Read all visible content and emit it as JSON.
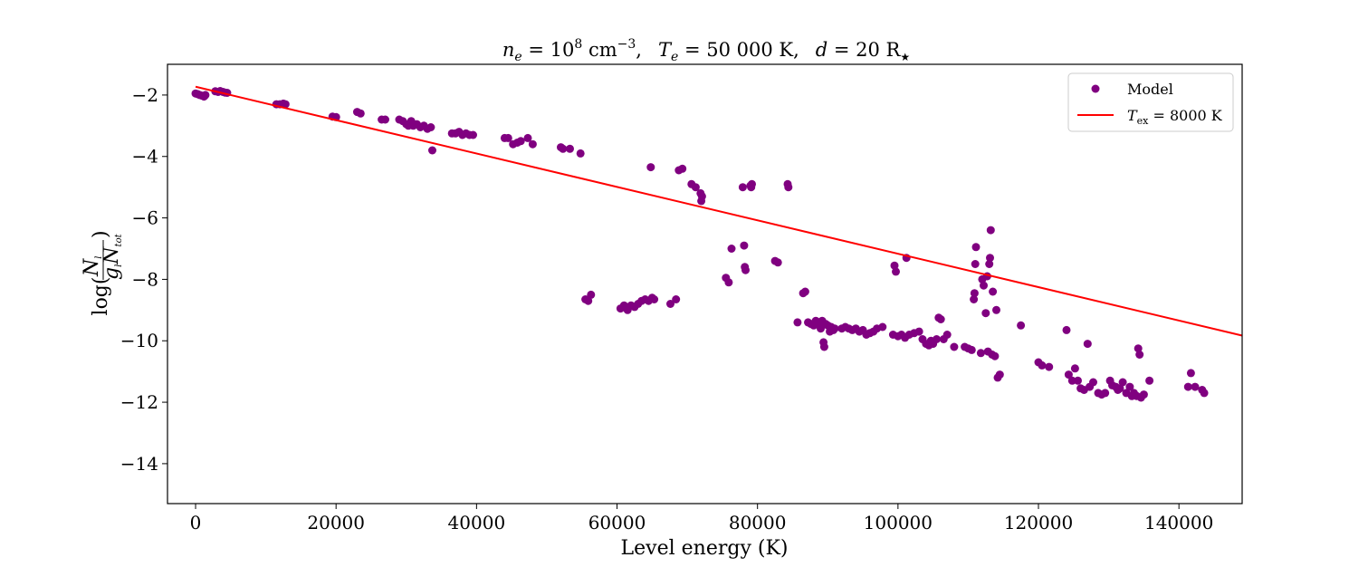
{
  "chart_data": {
    "type": "scatter",
    "title": {
      "ne": "n",
      "ne_sub": "e",
      "ne_eq": " = 10",
      "ne_exp": "8",
      "ne_unit": " cm",
      "ne_unit_exp": "−3",
      "sep1": ",",
      "te": "T",
      "te_sub": "e",
      "te_eq": " = 50 000 K",
      "sep2": ",",
      "d": "d",
      "d_eq": " = 20 R",
      "d_star": "★"
    },
    "xlabel": "Level energy (K)",
    "ylabel": {
      "log": "log(",
      "num": "N",
      "num_sub": "l",
      "den": "g",
      "den_sub1": "l",
      "den_n": "N",
      "den_sub2": "tot",
      "close": ")"
    },
    "xlim": [
      -4000,
      149000
    ],
    "ylim": [
      -15.3,
      -1.0
    ],
    "xticks": [
      0,
      20000,
      40000,
      60000,
      80000,
      100000,
      120000,
      140000
    ],
    "xtick_labels": [
      "0",
      "20000",
      "40000",
      "60000",
      "80000",
      "100000",
      "120000",
      "140000"
    ],
    "yticks": [
      -2,
      -4,
      -6,
      -8,
      -10,
      -12,
      -14
    ],
    "ytick_labels": [
      "−2",
      "−4",
      "−6",
      "−8",
      "−10",
      "−12",
      "−14"
    ],
    "legend": {
      "position": "top-right",
      "model_label": "Model",
      "fit_label_T": "T",
      "fit_label_sub": "ex",
      "fit_label_rest": " = 8000 K"
    },
    "colors": {
      "model": "#800080",
      "fit": "#ff0000"
    },
    "fit_line": {
      "x": [
        0,
        149000
      ],
      "y": [
        -1.73,
        -9.83
      ]
    },
    "series": [
      {
        "name": "Model",
        "points": [
          [
            0,
            -1.95
          ],
          [
            300,
            -1.97
          ],
          [
            600,
            -2.0
          ],
          [
            900,
            -2.02
          ],
          [
            1200,
            -2.05
          ],
          [
            1400,
            -2.0
          ],
          [
            2800,
            -1.88
          ],
          [
            3200,
            -1.9
          ],
          [
            3500,
            -1.87
          ],
          [
            3900,
            -1.9
          ],
          [
            4200,
            -1.92
          ],
          [
            4500,
            -1.93
          ],
          [
            11500,
            -2.3
          ],
          [
            12000,
            -2.3
          ],
          [
            12500,
            -2.28
          ],
          [
            12800,
            -2.3
          ],
          [
            19500,
            -2.7
          ],
          [
            20000,
            -2.72
          ],
          [
            23000,
            -2.55
          ],
          [
            23500,
            -2.6
          ],
          [
            26500,
            -2.8
          ],
          [
            27000,
            -2.8
          ],
          [
            29000,
            -2.8
          ],
          [
            29500,
            -2.85
          ],
          [
            30000,
            -2.95
          ],
          [
            30300,
            -3.0
          ],
          [
            30700,
            -2.85
          ],
          [
            31000,
            -3.0
          ],
          [
            31500,
            -2.95
          ],
          [
            32000,
            -3.05
          ],
          [
            32500,
            -3.0
          ],
          [
            33000,
            -3.1
          ],
          [
            33500,
            -3.05
          ],
          [
            33700,
            -3.8
          ],
          [
            36500,
            -3.25
          ],
          [
            37000,
            -3.25
          ],
          [
            37500,
            -3.2
          ],
          [
            38000,
            -3.3
          ],
          [
            38500,
            -3.25
          ],
          [
            39000,
            -3.3
          ],
          [
            39500,
            -3.3
          ],
          [
            44000,
            -3.4
          ],
          [
            44500,
            -3.4
          ],
          [
            45200,
            -3.6
          ],
          [
            45800,
            -3.55
          ],
          [
            46300,
            -3.5
          ],
          [
            47300,
            -3.4
          ],
          [
            48000,
            -3.6
          ],
          [
            52000,
            -3.7
          ],
          [
            52300,
            -3.75
          ],
          [
            53300,
            -3.75
          ],
          [
            54800,
            -3.9
          ],
          [
            55500,
            -8.65
          ],
          [
            55900,
            -8.7
          ],
          [
            56300,
            -8.5
          ],
          [
            60500,
            -8.95
          ],
          [
            61000,
            -8.85
          ],
          [
            61500,
            -9.0
          ],
          [
            62000,
            -8.85
          ],
          [
            62500,
            -8.9
          ],
          [
            63000,
            -8.8
          ],
          [
            63500,
            -8.7
          ],
          [
            64000,
            -8.65
          ],
          [
            64500,
            -8.7
          ],
          [
            65000,
            -8.6
          ],
          [
            65300,
            -8.65
          ],
          [
            64800,
            -4.35
          ],
          [
            67600,
            -8.8
          ],
          [
            68400,
            -8.65
          ],
          [
            68800,
            -4.45
          ],
          [
            69300,
            -4.4
          ],
          [
            70600,
            -4.9
          ],
          [
            71200,
            -5.0
          ],
          [
            71900,
            -5.2
          ],
          [
            72000,
            -5.45
          ],
          [
            72100,
            -5.3
          ],
          [
            75500,
            -7.95
          ],
          [
            75900,
            -8.1
          ],
          [
            76300,
            -7.0
          ],
          [
            77900,
            -5.0
          ],
          [
            78100,
            -6.9
          ],
          [
            78200,
            -7.6
          ],
          [
            78300,
            -7.7
          ],
          [
            79000,
            -4.95
          ],
          [
            79100,
            -5.0
          ],
          [
            79200,
            -4.9
          ],
          [
            82500,
            -7.4
          ],
          [
            82900,
            -7.45
          ],
          [
            84300,
            -4.9
          ],
          [
            84400,
            -5.0
          ],
          [
            85700,
            -9.4
          ],
          [
            86500,
            -8.45
          ],
          [
            86800,
            -8.4
          ],
          [
            87200,
            -9.4
          ],
          [
            87600,
            -9.45
          ],
          [
            88000,
            -9.5
          ],
          [
            88300,
            -9.35
          ],
          [
            88700,
            -9.4
          ],
          [
            89000,
            -9.6
          ],
          [
            89200,
            -9.35
          ],
          [
            89400,
            -10.05
          ],
          [
            89500,
            -10.2
          ],
          [
            89700,
            -9.45
          ],
          [
            90000,
            -9.5
          ],
          [
            90300,
            -9.7
          ],
          [
            90500,
            -9.55
          ],
          [
            90800,
            -9.65
          ],
          [
            91000,
            -9.6
          ],
          [
            92000,
            -9.6
          ],
          [
            92500,
            -9.55
          ],
          [
            93000,
            -9.6
          ],
          [
            93500,
            -9.65
          ],
          [
            94000,
            -9.6
          ],
          [
            94500,
            -9.7
          ],
          [
            95000,
            -9.65
          ],
          [
            95500,
            -9.8
          ],
          [
            96000,
            -9.75
          ],
          [
            96500,
            -9.7
          ],
          [
            97000,
            -9.6
          ],
          [
            97800,
            -9.55
          ],
          [
            99300,
            -9.8
          ],
          [
            99500,
            -7.55
          ],
          [
            99700,
            -7.75
          ],
          [
            100000,
            -9.85
          ],
          [
            100500,
            -9.8
          ],
          [
            101000,
            -9.9
          ],
          [
            101200,
            -7.3
          ],
          [
            101600,
            -9.8
          ],
          [
            102300,
            -9.75
          ],
          [
            103000,
            -9.7
          ],
          [
            103500,
            -9.95
          ],
          [
            104000,
            -10.1
          ],
          [
            104400,
            -10.15
          ],
          [
            104700,
            -10.0
          ],
          [
            105000,
            -10.1
          ],
          [
            105500,
            -9.95
          ],
          [
            105800,
            -9.25
          ],
          [
            106100,
            -9.3
          ],
          [
            106500,
            -9.95
          ],
          [
            107000,
            -9.8
          ],
          [
            108000,
            -10.2
          ],
          [
            109500,
            -10.2
          ],
          [
            110000,
            -10.25
          ],
          [
            110500,
            -10.3
          ],
          [
            110800,
            -8.65
          ],
          [
            110900,
            -8.45
          ],
          [
            111000,
            -7.5
          ],
          [
            111100,
            -6.95
          ],
          [
            111800,
            -10.4
          ],
          [
            112000,
            -8.0
          ],
          [
            112200,
            -8.2
          ],
          [
            112500,
            -9.1
          ],
          [
            112700,
            -7.9
          ],
          [
            112800,
            -10.35
          ],
          [
            113000,
            -7.5
          ],
          [
            113100,
            -7.3
          ],
          [
            113200,
            -6.4
          ],
          [
            113400,
            -10.45
          ],
          [
            113500,
            -8.4
          ],
          [
            113800,
            -10.5
          ],
          [
            114000,
            -9.0
          ],
          [
            114200,
            -11.2
          ],
          [
            114500,
            -11.1
          ],
          [
            117500,
            -9.5
          ],
          [
            120000,
            -10.7
          ],
          [
            120500,
            -10.8
          ],
          [
            121500,
            -10.85
          ],
          [
            124000,
            -9.65
          ],
          [
            124300,
            -11.1
          ],
          [
            124800,
            -11.3
          ],
          [
            125200,
            -10.9
          ],
          [
            125600,
            -11.3
          ],
          [
            126000,
            -11.55
          ],
          [
            126500,
            -11.6
          ],
          [
            127000,
            -10.1
          ],
          [
            127300,
            -11.5
          ],
          [
            127800,
            -11.35
          ],
          [
            128500,
            -11.7
          ],
          [
            129000,
            -11.75
          ],
          [
            129500,
            -11.7
          ],
          [
            130200,
            -11.3
          ],
          [
            130500,
            -11.45
          ],
          [
            131000,
            -11.5
          ],
          [
            131300,
            -11.6
          ],
          [
            131600,
            -11.55
          ],
          [
            132000,
            -11.35
          ],
          [
            132500,
            -11.7
          ],
          [
            133000,
            -11.5
          ],
          [
            133300,
            -11.8
          ],
          [
            133600,
            -11.7
          ],
          [
            134000,
            -11.8
          ],
          [
            134200,
            -10.25
          ],
          [
            134400,
            -10.45
          ],
          [
            134600,
            -11.85
          ],
          [
            135000,
            -11.75
          ],
          [
            135800,
            -11.3
          ],
          [
            141300,
            -11.5
          ],
          [
            141700,
            -11.05
          ],
          [
            142300,
            -11.5
          ],
          [
            143300,
            -11.6
          ],
          [
            143600,
            -11.7
          ]
        ]
      }
    ]
  }
}
